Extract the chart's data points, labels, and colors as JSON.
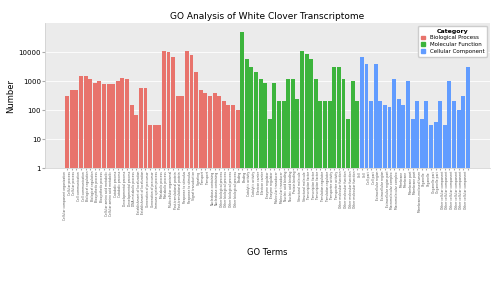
{
  "title": "GO Analysis of White Clover Transcriptome",
  "xlabel": "GO Terms",
  "ylabel": "Number",
  "bar_color_bp": "#E8736C",
  "bar_color_mf": "#3CB43C",
  "bar_color_cc": "#619CFF",
  "bg_color": "#EBEBEB",
  "legend_labels": [
    "Biological Process",
    "Molecular Function",
    "Cellular Component"
  ],
  "biological_process": [
    300,
    500,
    500,
    1500,
    1500,
    1200,
    900,
    1000,
    800,
    800,
    800,
    1000,
    1300,
    1200,
    150,
    70,
    600,
    600,
    30,
    30,
    30,
    11000,
    10500,
    7000,
    300,
    300,
    11000,
    8000,
    2000,
    500,
    400,
    300,
    400,
    300,
    200,
    150,
    150,
    100
  ],
  "molecular_function": [
    50000,
    6000,
    3000,
    2000,
    1200,
    900,
    50,
    900,
    200,
    200,
    1200,
    1200,
    250,
    11000,
    8500,
    6000,
    1200,
    200,
    200,
    200,
    3000,
    3000,
    1200,
    50,
    1000,
    200
  ],
  "cellular_component": [
    7000,
    4000,
    200,
    4000,
    200,
    150,
    130,
    1200,
    250,
    150,
    1000,
    50,
    200,
    50,
    200,
    30,
    40,
    200,
    30,
    1000,
    200,
    100,
    300,
    3000
  ],
  "bp_labels": [
    "Cellular component organization",
    "Cellular process",
    "Cellular process",
    "Cell communication",
    "Cell communication",
    "Biological regulation",
    "Biological regulation",
    "Biosynthetic process",
    "Biosynthetic process",
    "Cellular amino acid metabolic",
    "Cellular amino acid metabolic",
    "Catabolic process",
    "Catabolic process",
    "Developmental process",
    "Developmental process",
    "DNA metabolic process",
    "Establishment of localization",
    "Establishment of localization",
    "Generation of precursor",
    "Generation of precursor",
    "Immune system process",
    "Metabolic process",
    "Metabolic process",
    "Multicellular organismal",
    "Post-translational protein",
    "Post-translational protein",
    "Response to stimulus",
    "Response to stimulus",
    "Signal transduction",
    "Signaling",
    "Transport",
    "Transport",
    "Nucleobase-containing",
    "Nucleobase-containing",
    "Other biological process",
    "Other biological process",
    "Other biological process",
    "Other biological process"
  ],
  "mf_labels": [
    "Binding",
    "Binding",
    "Catalytic activity",
    "Catalytic activity",
    "Electron carrier",
    "Electron carrier",
    "Enzyme regulator",
    "Enzyme regulator",
    "Molecular transducer",
    "Molecular transducer",
    "Nucleic acid binding",
    "Nucleic acid binding",
    "Protein binding",
    "Structural molecule",
    "Structural molecule",
    "Transcription factor",
    "Transcription factor",
    "Transcription factor",
    "Translation regulator",
    "Translation regulator",
    "Transporter activity",
    "Transporter activity",
    "Other molecular function",
    "Other molecular function",
    "Other molecular function",
    "Other molecular function"
  ],
  "cc_labels": [
    "Cell",
    "Cell",
    "Cell part",
    "Cell part",
    "Extracellular region",
    "Extracellular region",
    "Extracellular region part",
    "Macromolecular complex",
    "Macromolecular complex",
    "Membrane",
    "Membrane",
    "Membrane part",
    "Membrane part",
    "Membrane-enclosed lumen",
    "Organelle",
    "Organelle",
    "Organelle part",
    "Organelle part",
    "Other cellular component",
    "Other cellular component",
    "Other cellular component",
    "Other cellular component",
    "Other cellular component",
    "Other cellular component"
  ],
  "yticks": [
    1,
    10,
    100,
    1000,
    10000
  ],
  "ytick_labels": [
    "1",
    "10",
    "100",
    "1000",
    "10000"
  ],
  "ylim_min": 1,
  "ylim_max": 100000
}
